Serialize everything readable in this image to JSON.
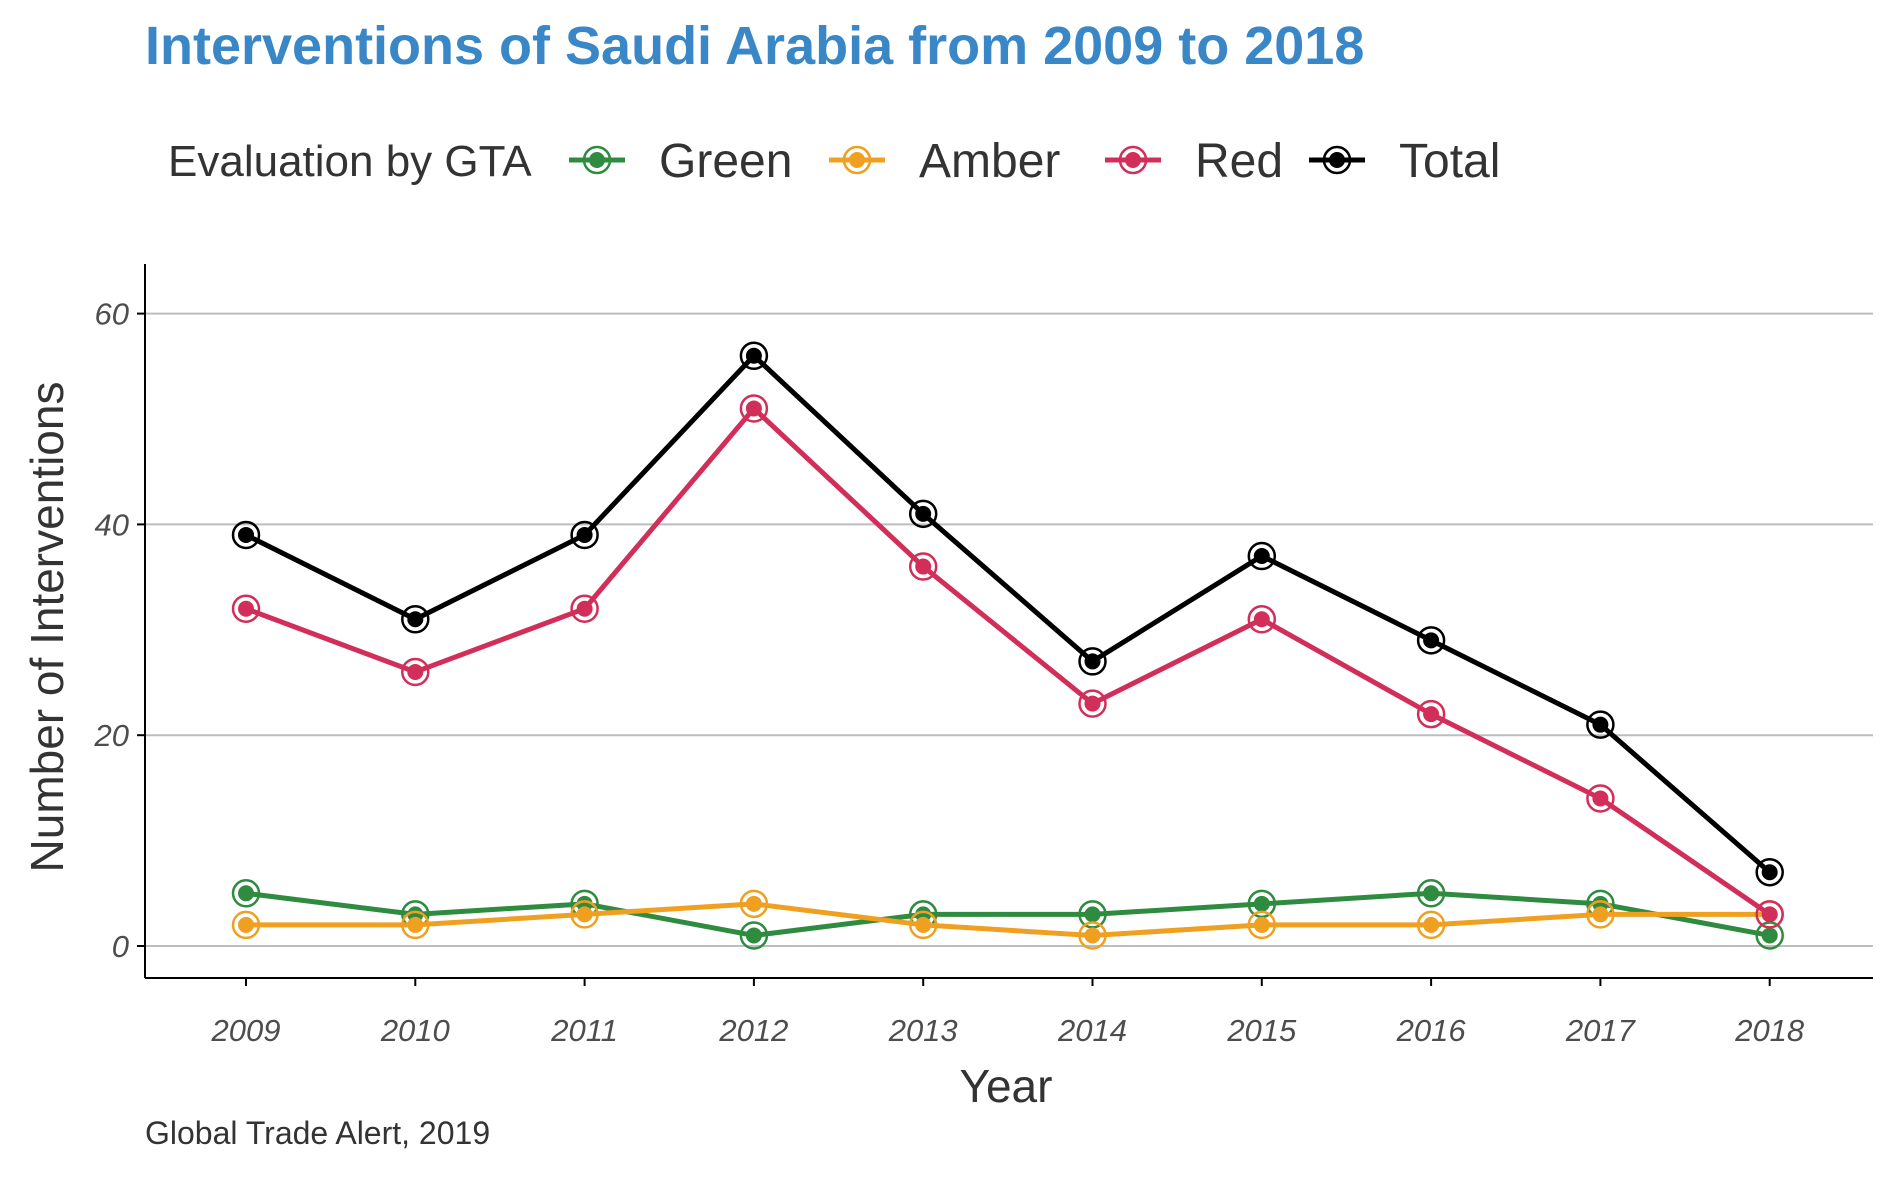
{
  "chart_data": {
    "type": "line",
    "title": "Interventions of Saudi Arabia from 2009 to 2018",
    "xlabel": "Year",
    "ylabel": "Number of Interventions",
    "caption": "Global Trade Alert, 2019",
    "legend_title": "Evaluation by GTA",
    "legend_position": "top",
    "grid": "horizontal-major",
    "x": [
      "2009",
      "2010",
      "2011",
      "2012",
      "2013",
      "2014",
      "2015",
      "2016",
      "2017",
      "2018"
    ],
    "ylim": [
      -3,
      65
    ],
    "yticks": [
      0,
      20,
      40,
      60
    ],
    "series": [
      {
        "name": "Green",
        "color": "#2e8b3f",
        "values": [
          5,
          3,
          4,
          1,
          3,
          3,
          4,
          5,
          4,
          1
        ]
      },
      {
        "name": "Amber",
        "color": "#f0a020",
        "values": [
          2,
          2,
          3,
          4,
          2,
          1,
          2,
          2,
          3,
          3
        ]
      },
      {
        "name": "Red",
        "color": "#d22e5a",
        "values": [
          32,
          26,
          32,
          51,
          36,
          23,
          31,
          22,
          14,
          3
        ]
      },
      {
        "name": "Total",
        "color": "#000000",
        "values": [
          39,
          31,
          39,
          56,
          41,
          27,
          37,
          29,
          21,
          7
        ]
      }
    ]
  },
  "colors": {
    "title": "#3a87c8",
    "grid": "#bdbdbd",
    "axis": "#000000"
  }
}
